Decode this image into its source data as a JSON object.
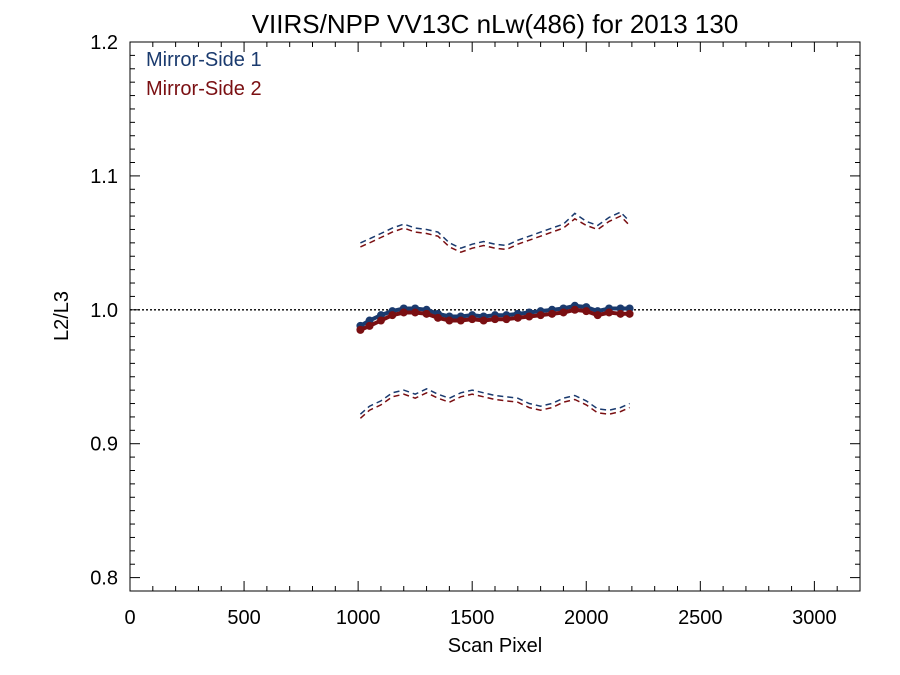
{
  "chart_data": {
    "type": "line",
    "title": "VIIRS/NPP VV13C nLw(486) for 2013 130",
    "xlabel": "Scan Pixel",
    "ylabel": "L2/L3",
    "xlim": [
      0,
      3200
    ],
    "ylim": [
      0.79,
      1.2
    ],
    "xticks": [
      0,
      500,
      1000,
      1500,
      2000,
      2500,
      3000
    ],
    "yticks": [
      0.8,
      0.9,
      1.0,
      1.1,
      1.2
    ],
    "xtick_labels": [
      "0",
      "500",
      "1000",
      "1500",
      "2000",
      "2500",
      "3000"
    ],
    "ytick_labels": [
      "0.8",
      "0.9",
      "1.0",
      "1.1",
      "1.2"
    ],
    "reference_line": 1.0,
    "legend_position": "top-left",
    "colors": {
      "ms1": "#1a3a6e",
      "ms2": "#7a0f12",
      "axis": "#000000"
    },
    "x": [
      1010,
      1050,
      1100,
      1150,
      1200,
      1250,
      1300,
      1350,
      1400,
      1450,
      1500,
      1550,
      1600,
      1650,
      1700,
      1750,
      1800,
      1850,
      1900,
      1950,
      2000,
      2050,
      2100,
      2150,
      2190
    ],
    "series": [
      {
        "name": "Mirror-Side 1",
        "color": "#1a3a6e",
        "mean": [
          0.988,
          0.992,
          0.996,
          0.999,
          1.001,
          1.001,
          1.0,
          0.997,
          0.995,
          0.995,
          0.996,
          0.995,
          0.996,
          0.996,
          0.997,
          0.998,
          0.999,
          1.0,
          1.001,
          1.003,
          1.002,
          0.999,
          1.001,
          1.001,
          1.001
        ],
        "upper": [
          1.05,
          1.053,
          1.057,
          1.061,
          1.064,
          1.061,
          1.06,
          1.058,
          1.05,
          1.046,
          1.049,
          1.051,
          1.049,
          1.048,
          1.052,
          1.055,
          1.058,
          1.061,
          1.064,
          1.072,
          1.066,
          1.063,
          1.069,
          1.073,
          1.066
        ],
        "lower": [
          0.922,
          0.928,
          0.932,
          0.938,
          0.94,
          0.937,
          0.941,
          0.937,
          0.934,
          0.938,
          0.94,
          0.938,
          0.936,
          0.935,
          0.934,
          0.93,
          0.928,
          0.93,
          0.934,
          0.936,
          0.932,
          0.926,
          0.925,
          0.927,
          0.93
        ]
      },
      {
        "name": "Mirror-Side 2",
        "color": "#7a0f12",
        "mean": [
          0.985,
          0.988,
          0.992,
          0.996,
          0.998,
          0.998,
          0.997,
          0.994,
          0.992,
          0.992,
          0.993,
          0.992,
          0.993,
          0.993,
          0.994,
          0.995,
          0.996,
          0.997,
          0.998,
          1.0,
          0.999,
          0.996,
          0.998,
          0.997,
          0.997
        ],
        "upper": [
          1.047,
          1.05,
          1.054,
          1.058,
          1.061,
          1.058,
          1.057,
          1.055,
          1.047,
          1.043,
          1.046,
          1.048,
          1.046,
          1.045,
          1.049,
          1.052,
          1.055,
          1.058,
          1.061,
          1.068,
          1.063,
          1.06,
          1.066,
          1.07,
          1.063
        ],
        "lower": [
          0.919,
          0.925,
          0.929,
          0.935,
          0.937,
          0.934,
          0.938,
          0.934,
          0.931,
          0.935,
          0.937,
          0.935,
          0.933,
          0.932,
          0.931,
          0.927,
          0.925,
          0.927,
          0.931,
          0.933,
          0.929,
          0.923,
          0.922,
          0.924,
          0.927
        ]
      }
    ]
  }
}
